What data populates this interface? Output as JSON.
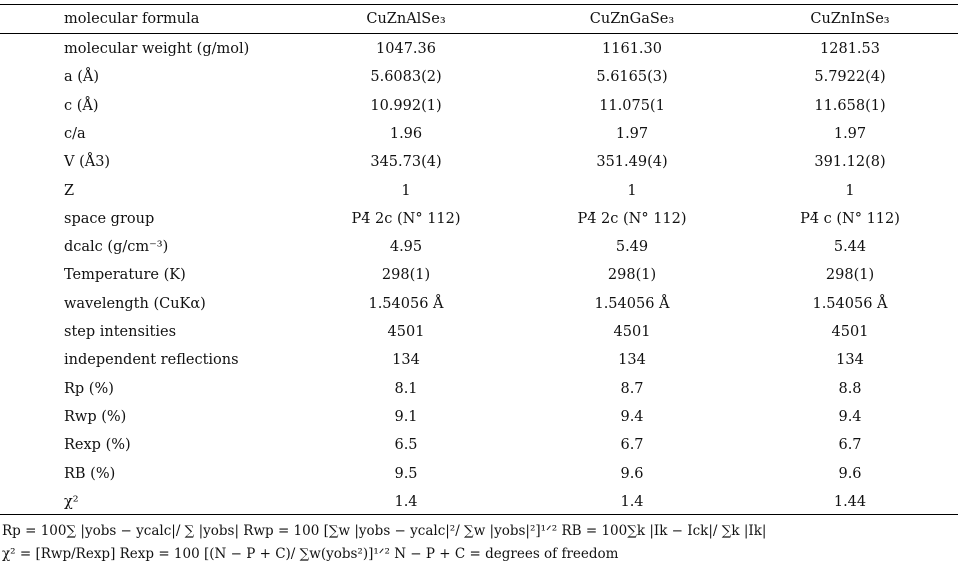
{
  "header": {
    "label": "molecular formula",
    "cols": [
      "CuZnAlSe₃",
      "CuZnGaSe₃",
      "CuZnInSe₃"
    ]
  },
  "rows": [
    {
      "label": "molecular weight (g/mol)",
      "values": [
        "1047.36",
        "1161.30",
        "1281.53"
      ]
    },
    {
      "label": "a (Å)",
      "values": [
        "5.6083(2)",
        "5.6165(3)",
        "5.7922(4)"
      ]
    },
    {
      "label": "c (Å)",
      "values": [
        "10.992(1)",
        "11.075(1",
        "11.658(1)"
      ]
    },
    {
      "label": "c/a",
      "values": [
        "1.96",
        "1.97",
        "1.97"
      ]
    },
    {
      "label": "V (Å3)",
      "values": [
        "345.73(4)",
        "351.49(4)",
        "391.12(8)"
      ]
    },
    {
      "label": "Z",
      "values": [
        "1",
        "1",
        "1"
      ]
    },
    {
      "label": "space group",
      "values": [
        "P4̄ 2c (N° 112)",
        "P4̄ 2c (N° 112)",
        "P4̄ c (N° 112)"
      ]
    },
    {
      "label": "dcalc (g/cm⁻³)",
      "values": [
        "4.95",
        "5.49",
        "5.44"
      ]
    },
    {
      "label": "Temperature (K)",
      "values": [
        "298(1)",
        "298(1)",
        "298(1)"
      ]
    },
    {
      "label": "wavelength (CuKα)",
      "values": [
        "1.54056 Å",
        "1.54056 Å",
        "1.54056 Å"
      ]
    },
    {
      "label": "step intensities",
      "values": [
        "4501",
        "4501",
        "4501"
      ]
    },
    {
      "label": "independent reflections",
      "values": [
        "134",
        "134",
        "134"
      ]
    },
    {
      "label": "Rp (%)",
      "values": [
        "8.1",
        "8.7",
        "8.8"
      ]
    },
    {
      "label": "Rwp (%)",
      "values": [
        "9.1",
        "9.4",
        "9.4"
      ]
    },
    {
      "label": "Rexp (%)",
      "values": [
        "6.5",
        "6.7",
        "6.7"
      ]
    },
    {
      "label": "RB (%)",
      "values": [
        "9.5",
        "9.6",
        "9.6"
      ]
    },
    {
      "label": "χ²",
      "values": [
        "1.4",
        "1.4",
        "1.44"
      ]
    }
  ],
  "footnotes": {
    "line1": "Rp = 100∑ |yobs − ycalc|/ ∑ |yobs|      Rwp = 100 [∑w |yobs − ycalc|²/ ∑w |yobs|²]¹ᐟ²      RB = 100∑k |Ik − Ick|/ ∑k |Ik|",
    "line2": "χ² = [Rwp/Rexp]      Rexp = 100 [(N − P + C)/ ∑w(yobs²)]¹ᐟ²      N − P + C = degrees of freedom"
  }
}
